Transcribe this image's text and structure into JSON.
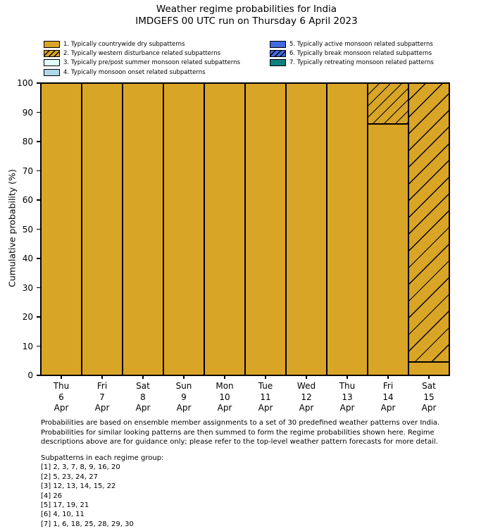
{
  "title": {
    "line1": "Weather regime probabilities for India",
    "line2": "IMDGEFS 00 UTC run on Thursday 6 April 2023"
  },
  "colors": {
    "regime_dry_gold": "#D9A527",
    "regime_pre_post_monsoon": "#E0FFFF",
    "regime_monsoon_onset": "#ADD8E6",
    "regime_active_monsoon": "#4169E1",
    "regime_retreating_monsoon": "#0E8080",
    "bar_edge": "#000000",
    "text": "#000000",
    "background": "#FFFFFF"
  },
  "legend": {
    "items": [
      {
        "label": "1. Typically countrywide dry subpatterns",
        "color": "#D9A527",
        "hatch": false,
        "column": "left"
      },
      {
        "label": "2. Typically western disturbance related subpatterns",
        "color": "#D9A527",
        "hatch": true,
        "column": "left"
      },
      {
        "label": "3. Typically pre/post summer monsoon related subpatterns",
        "color": "#E0FFFF",
        "hatch": false,
        "column": "left"
      },
      {
        "label": "4. Typically monsoon onset related subpatterns",
        "color": "#ADD8E6",
        "hatch": false,
        "column": "left"
      },
      {
        "label": "5. Typically active monsoon related subpatterns",
        "color": "#4169E1",
        "hatch": false,
        "column": "right"
      },
      {
        "label": "6. Typically break monsoon related subpatterns",
        "color": "#4169E1",
        "hatch": true,
        "column": "right"
      },
      {
        "label": "7. Typically retreating monsoon related patterns",
        "color": "#0E8080",
        "hatch": false,
        "column": "right"
      }
    ]
  },
  "chart_data": {
    "type": "bar",
    "stacked": true,
    "title": "Weather regime probabilities for India",
    "subtitle": "IMDGEFS 00 UTC run on Thursday 6 April 2023",
    "xlabel": "",
    "ylabel": "Cumulative probability (%)",
    "ylim": [
      0,
      100
    ],
    "yticks": [
      0,
      10,
      20,
      30,
      40,
      50,
      60,
      70,
      80,
      90,
      100
    ],
    "grid": false,
    "legend_position": "above plot, two columns, frameless",
    "categories": [
      "Thu 6 Apr",
      "Fri 7 Apr",
      "Sat 8 Apr",
      "Sun 9 Apr",
      "Mon 10 Apr",
      "Tue 11 Apr",
      "Wed 12 Apr",
      "Thu 13 Apr",
      "Fri 14 Apr",
      "Sat 15 Apr"
    ],
    "category_lines": [
      [
        "Thu",
        "6",
        "Apr"
      ],
      [
        "Fri",
        "7",
        "Apr"
      ],
      [
        "Sat",
        "8",
        "Apr"
      ],
      [
        "Sun",
        "9",
        "Apr"
      ],
      [
        "Mon",
        "10",
        "Apr"
      ],
      [
        "Tue",
        "11",
        "Apr"
      ],
      [
        "Wed",
        "12",
        "Apr"
      ],
      [
        "Thu",
        "13",
        "Apr"
      ],
      [
        "Fri",
        "14",
        "Apr"
      ],
      [
        "Sat",
        "15",
        "Apr"
      ]
    ],
    "series": [
      {
        "name": "1. Typically countrywide dry subpatterns",
        "color": "#D9A527",
        "hatch": false,
        "values": [
          100,
          100,
          100,
          100,
          100,
          100,
          100,
          100,
          86,
          4.5
        ]
      },
      {
        "name": "2. Typically western disturbance related subpatterns",
        "color": "#D9A527",
        "hatch": true,
        "values": [
          0,
          0,
          0,
          0,
          0,
          0,
          0,
          0,
          14,
          95.5
        ]
      },
      {
        "name": "3. Typically pre/post summer monsoon related subpatterns",
        "color": "#E0FFFF",
        "hatch": false,
        "values": [
          0,
          0,
          0,
          0,
          0,
          0,
          0,
          0,
          0,
          0
        ]
      },
      {
        "name": "4. Typically monsoon onset related subpatterns",
        "color": "#ADD8E6",
        "hatch": false,
        "values": [
          0,
          0,
          0,
          0,
          0,
          0,
          0,
          0,
          0,
          0
        ]
      },
      {
        "name": "5. Typically active monsoon related subpatterns",
        "color": "#4169E1",
        "hatch": false,
        "values": [
          0,
          0,
          0,
          0,
          0,
          0,
          0,
          0,
          0,
          0
        ]
      },
      {
        "name": "6. Typically break monsoon related subpatterns",
        "color": "#4169E1",
        "hatch": true,
        "values": [
          0,
          0,
          0,
          0,
          0,
          0,
          0,
          0,
          0,
          0
        ]
      },
      {
        "name": "7. Typically retreating monsoon related patterns",
        "color": "#0E8080",
        "hatch": false,
        "values": [
          0,
          0,
          0,
          0,
          0,
          0,
          0,
          0,
          0,
          0
        ]
      }
    ]
  },
  "footnote": {
    "lines": [
      "Probabilities are based on ensemble member assignments to a set of 30 predefined weather patterns over India.",
      "Probabilities for similar looking patterns are then summed to form the regime probabilities shown here. Regime",
      "descriptions above are for guidance only; please refer to the top-level weather pattern forecasts for more detail."
    ]
  },
  "subpatterns": {
    "heading": "Subpatterns in each regime group:",
    "lines": [
      "[1] 2, 3, 7, 8, 9, 16, 20",
      "[2] 5, 23, 24, 27",
      "[3] 12, 13, 14, 15, 22",
      "[4] 26",
      "[5] 17, 19, 21",
      "[6] 4, 10, 11",
      "[7] 1, 6, 18, 25, 28, 29, 30"
    ]
  }
}
